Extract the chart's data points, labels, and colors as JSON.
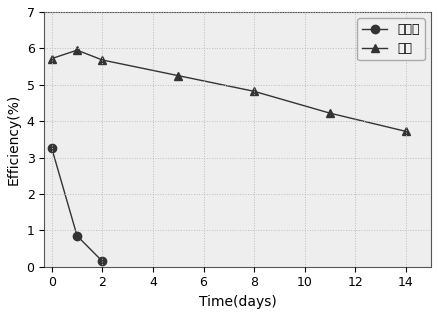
{
  "title": "",
  "xlabel": "Time(days)",
  "ylabel": "Efficiency(%)",
  "xlim": [
    -0.3,
    15
  ],
  "ylim": [
    0,
    7
  ],
  "yticks": [
    0,
    1,
    2,
    3,
    4,
    5,
    6,
    7
  ],
  "xticks": [
    0,
    2,
    4,
    6,
    8,
    10,
    12,
    14
  ],
  "series": [
    {
      "label": "未锓化",
      "x": [
        0,
        1,
        2
      ],
      "y": [
        3.25,
        0.85,
        0.15
      ],
      "color": "#333333",
      "marker": "o",
      "markersize": 6,
      "linewidth": 1.0,
      "linestyle": "-"
    },
    {
      "label": "锓化",
      "x": [
        0,
        1,
        2,
        5,
        8,
        11,
        14
      ],
      "y": [
        5.72,
        5.95,
        5.68,
        5.25,
        4.82,
        4.22,
        3.72
      ],
      "color": "#333333",
      "marker": "^",
      "markersize": 6,
      "linewidth": 1.0,
      "linestyle": "-"
    }
  ],
  "grid": true,
  "grid_color": "#bbbbbb",
  "grid_linestyle": ":",
  "grid_linewidth": 0.7,
  "background_color": "#ffffff",
  "plot_bg_color": "#eeeeee",
  "legend_loc": "upper right",
  "legend_fontsize": 9,
  "axis_fontsize": 10,
  "tick_fontsize": 9
}
